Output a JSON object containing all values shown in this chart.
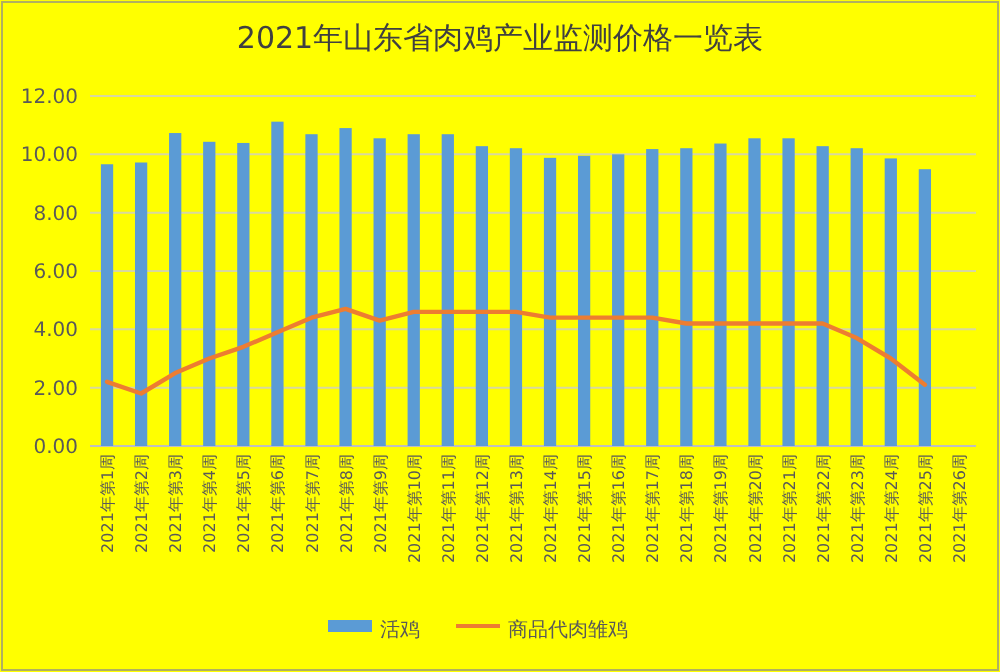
{
  "chart_data": {
    "type": "bar",
    "title": "2021年山东省肉鸡产业监测价格一览表",
    "categories": [
      "2021年第1周",
      "2021年第2周",
      "2021年第3周",
      "2021年第4周",
      "2021年第5周",
      "2021年第6周",
      "2021年第7周",
      "2021年第8周",
      "2021年第9周",
      "2021年第10周",
      "2021年第11周",
      "2021年第12周",
      "2021年第13周",
      "2021年第14周",
      "2021年第15周",
      "2021年第16周",
      "2021年第17周",
      "2021年第18周",
      "2021年第19周",
      "2021年第20周",
      "2021年第21周",
      "2021年第22周",
      "2021年第23周",
      "2021年第24周",
      "2021年第25周",
      "2021年第26周"
    ],
    "series": [
      {
        "name": "活鸡",
        "color": "#5b9bd5",
        "values": [
          9.66,
          9.72,
          10.73,
          10.43,
          10.39,
          11.12,
          10.69,
          10.9,
          10.55,
          10.69,
          10.69,
          10.28,
          10.21,
          9.88,
          9.95,
          10.0,
          10.18,
          10.21,
          10.37,
          10.55,
          10.55,
          10.28,
          10.21,
          9.86,
          9.49,
          null
        ]
      },
      {
        "name": "商品代肉雏鸡",
        "type": "line",
        "color": "#ed7d31",
        "values": [
          2.2,
          1.8,
          2.5,
          3.0,
          3.4,
          3.9,
          4.4,
          4.7,
          4.3,
          4.6,
          4.6,
          4.6,
          4.6,
          4.4,
          4.4,
          4.4,
          4.4,
          4.2,
          4.2,
          4.2,
          4.2,
          4.2,
          3.7,
          3.0,
          2.1,
          null
        ]
      }
    ],
    "ylim": [
      0,
      12
    ],
    "yticks": [
      {
        "value": 0,
        "label": "0.00"
      },
      {
        "value": 2,
        "label": "2.00"
      },
      {
        "value": 4,
        "label": "4.00"
      },
      {
        "value": 6,
        "label": "6.00"
      },
      {
        "value": 8,
        "label": "8.00"
      },
      {
        "value": 10,
        "label": "10.00"
      },
      {
        "value": 12,
        "label": "12.00"
      }
    ],
    "grid": "y",
    "legend": "bottom"
  }
}
